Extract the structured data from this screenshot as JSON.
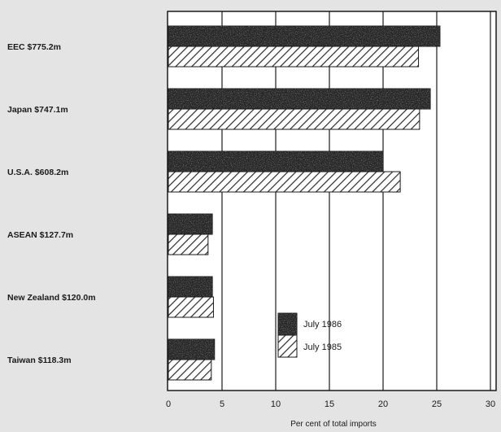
{
  "chart_data": {
    "type": "bar",
    "orientation": "horizontal",
    "categories": [
      "EEC $775.2m",
      "Japan $747.1m",
      "U.S.A. $608.2m",
      "ASEAN $127.7m",
      "New Zealand $120.0m",
      "Taiwan $118.3m"
    ],
    "series": [
      {
        "name": "July 1986",
        "values": [
          25.3,
          24.4,
          20.0,
          4.1,
          4.1,
          4.3
        ],
        "pattern": "stipple",
        "color": "#2a2a2a"
      },
      {
        "name": "July 1985",
        "values": [
          23.3,
          23.4,
          21.6,
          3.7,
          4.2,
          4.0
        ],
        "pattern": "hatch",
        "color": "#ffffff"
      }
    ],
    "xlabel": "Per cent of total imports",
    "xticks": [
      0,
      5,
      10,
      15,
      20,
      25,
      30
    ],
    "xlim": [
      0,
      30
    ],
    "grid": "vertical",
    "legend": "bottom-center"
  }
}
